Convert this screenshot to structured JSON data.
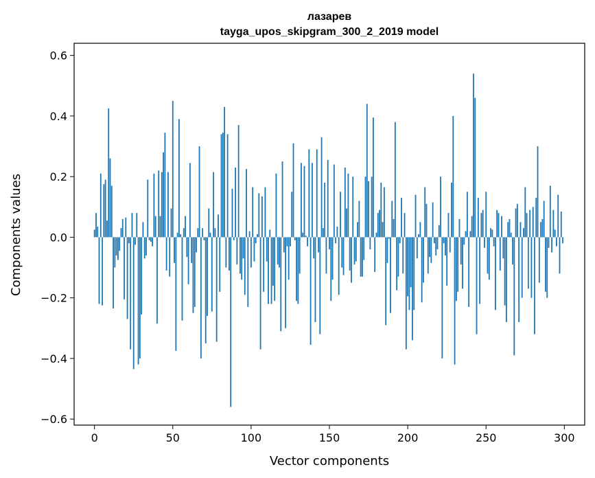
{
  "chart_data": {
    "type": "bar",
    "title": "лазарев",
    "subtitle": "tayga_upos_skipgram_300_2_2019 model",
    "xlabel": "Vector components",
    "ylabel": "Components values",
    "xlim": [
      -13,
      313
    ],
    "ylim": [
      -0.62,
      0.64
    ],
    "xticks": [
      0,
      50,
      100,
      150,
      200,
      250,
      300
    ],
    "xtick_labels": [
      "0",
      "50",
      "100",
      "150",
      "200",
      "250",
      "300"
    ],
    "yticks": [
      -0.6,
      -0.4,
      -0.2,
      0.0,
      0.2,
      0.4,
      0.6
    ],
    "ytick_labels": [
      "−0.6",
      "−0.4",
      "−0.2",
      "0.0",
      "0.2",
      "0.4",
      "0.6"
    ],
    "grid": false,
    "bar_color": "#1f77b4",
    "x": [
      0,
      1,
      2,
      3,
      4,
      5,
      6,
      7,
      8,
      9,
      10,
      11,
      12,
      13,
      14,
      15,
      16,
      17,
      18,
      19,
      20,
      21,
      22,
      23,
      24,
      25,
      26,
      27,
      28,
      29,
      30,
      31,
      32,
      33,
      34,
      35,
      36,
      37,
      38,
      39,
      40,
      41,
      42,
      43,
      44,
      45,
      46,
      47,
      48,
      49,
      50,
      51,
      52,
      53,
      54,
      55,
      56,
      57,
      58,
      59,
      60,
      61,
      62,
      63,
      64,
      65,
      66,
      67,
      68,
      69,
      70,
      71,
      72,
      73,
      74,
      75,
      76,
      77,
      78,
      79,
      80,
      81,
      82,
      83,
      84,
      85,
      86,
      87,
      88,
      89,
      90,
      91,
      92,
      93,
      94,
      95,
      96,
      97,
      98,
      99,
      100,
      101,
      102,
      103,
      104,
      105,
      106,
      107,
      108,
      109,
      110,
      111,
      112,
      113,
      114,
      115,
      116,
      117,
      118,
      119,
      120,
      121,
      122,
      123,
      124,
      125,
      126,
      127,
      128,
      129,
      130,
      131,
      132,
      133,
      134,
      135,
      136,
      137,
      138,
      139,
      140,
      141,
      142,
      143,
      144,
      145,
      146,
      147,
      148,
      149,
      150,
      151,
      152,
      153,
      154,
      155,
      156,
      157,
      158,
      159,
      160,
      161,
      162,
      163,
      164,
      165,
      166,
      167,
      168,
      169,
      170,
      171,
      172,
      173,
      174,
      175,
      176,
      177,
      178,
      179,
      180,
      181,
      182,
      183,
      184,
      185,
      186,
      187,
      188,
      189,
      190,
      191,
      192,
      193,
      194,
      195,
      196,
      197,
      198,
      199,
      200,
      201,
      202,
      203,
      204,
      205,
      206,
      207,
      208,
      209,
      210,
      211,
      212,
      213,
      214,
      215,
      216,
      217,
      218,
      219,
      220,
      221,
      222,
      223,
      224,
      225,
      226,
      227,
      228,
      229,
      230,
      231,
      232,
      233,
      234,
      235,
      236,
      237,
      238,
      239,
      240,
      241,
      242,
      243,
      244,
      245,
      246,
      247,
      248,
      249,
      250,
      251,
      252,
      253,
      254,
      255,
      256,
      257,
      258,
      259,
      260,
      261,
      262,
      263,
      264,
      265,
      266,
      267,
      268,
      269,
      270,
      271,
      272,
      273,
      274,
      275,
      276,
      277,
      278,
      279,
      280,
      281,
      282,
      283,
      284,
      285,
      286,
      287,
      288,
      289,
      290,
      291,
      292,
      293,
      294,
      295,
      296,
      297,
      298,
      299
    ],
    "values": [
      0.025,
      0.08,
      0.035,
      -0.22,
      0.21,
      -0.225,
      0.175,
      0.19,
      0.055,
      0.425,
      0.26,
      0.17,
      -0.235,
      -0.1,
      -0.06,
      -0.075,
      -0.045,
      0.03,
      0.06,
      -0.205,
      0.065,
      -0.27,
      -0.02,
      -0.37,
      0.08,
      -0.435,
      -0.025,
      0.08,
      -0.42,
      -0.4,
      -0.255,
      0.05,
      -0.07,
      -0.06,
      0.19,
      -0.01,
      -0.015,
      -0.03,
      0.21,
      0.07,
      -0.285,
      0.22,
      0.07,
      0.215,
      0.28,
      0.345,
      -0.11,
      0.215,
      -0.13,
      0.095,
      0.45,
      -0.085,
      -0.375,
      0.015,
      0.39,
      0.01,
      -0.275,
      0.03,
      0.07,
      -0.065,
      -0.155,
      0.245,
      -0.085,
      -0.25,
      -0.23,
      -0.05,
      0.03,
      0.3,
      -0.4,
      0.03,
      -0.01,
      -0.35,
      -0.26,
      0.095,
      0.015,
      -0.245,
      0.215,
      0.03,
      -0.345,
      0.075,
      -0.18,
      0.34,
      0.345,
      0.43,
      -0.1,
      0.34,
      -0.11,
      -0.56,
      0.16,
      -0.01,
      0.23,
      -0.09,
      0.37,
      -0.12,
      -0.14,
      -0.07,
      -0.19,
      0.225,
      -0.23,
      0.02,
      -0.1,
      0.165,
      -0.08,
      -0.02,
      0.01,
      0.145,
      -0.37,
      0.135,
      -0.18,
      0.165,
      -0.08,
      -0.22,
      0.025,
      -0.22,
      -0.16,
      -0.21,
      0.21,
      -0.09,
      -0.1,
      -0.31,
      0.25,
      -0.05,
      -0.3,
      -0.03,
      -0.14,
      -0.03,
      0.15,
      0.31,
      -0.01,
      -0.21,
      -0.22,
      -0.12,
      0.245,
      0.015,
      0.235,
      0.005,
      -0.03,
      0.29,
      -0.355,
      0.245,
      -0.07,
      -0.28,
      0.29,
      -0.05,
      -0.32,
      0.33,
      0.03,
      0.18,
      -0.12,
      0.255,
      -0.04,
      -0.21,
      -0.14,
      0.24,
      -0.02,
      0.035,
      -0.19,
      0.15,
      -0.1,
      -0.125,
      0.23,
      0.095,
      0.21,
      -0.11,
      -0.15,
      0.2,
      -0.09,
      -0.08,
      0.05,
      0.12,
      -0.13,
      -0.13,
      -0.075,
      0.2,
      0.44,
      0.185,
      -0.04,
      0.2,
      0.395,
      -0.115,
      0.015,
      0.08,
      0.09,
      0.18,
      0.05,
      0.165,
      -0.29,
      -0.085,
      -0.005,
      -0.25,
      0.12,
      0.06,
      0.38,
      -0.175,
      -0.13,
      -0.02,
      0.13,
      -0.12,
      0.08,
      -0.37,
      -0.195,
      -0.24,
      -0.165,
      -0.34,
      -0.24,
      0.14,
      -0.07,
      0.01,
      0.05,
      -0.215,
      -0.15,
      0.165,
      0.11,
      -0.12,
      -0.065,
      -0.085,
      0.115,
      -0.02,
      -0.06,
      -0.04,
      0.04,
      0.2,
      -0.4,
      -0.02,
      -0.06,
      -0.16,
      0.08,
      -0.05,
      0.18,
      0.4,
      -0.42,
      -0.21,
      -0.18,
      0.06,
      -0.09,
      -0.17,
      -0.025,
      0.02,
      0.15,
      -0.23,
      0.02,
      0.07,
      0.54,
      0.46,
      -0.32,
      0.13,
      -0.22,
      0.08,
      0.09,
      -0.035,
      0.15,
      -0.12,
      -0.14,
      0.03,
      0.025,
      -0.03,
      -0.24,
      0.09,
      0.08,
      -0.11,
      0.07,
      -0.07,
      -0.225,
      -0.28,
      0.05,
      0.06,
      0.015,
      -0.09,
      -0.39,
      0.095,
      0.11,
      -0.28,
      0.05,
      -0.2,
      0.03,
      0.165,
      0.08,
      -0.17,
      0.09,
      -0.2,
      0.1,
      -0.32,
      0.13,
      0.3,
      -0.15,
      0.05,
      0.06,
      0.12,
      -0.18,
      -0.2,
      -0.035,
      0.17,
      -0.05,
      0.09,
      0.025,
      -0.03,
      0.14,
      -0.12,
      0.085,
      -0.02
    ]
  }
}
